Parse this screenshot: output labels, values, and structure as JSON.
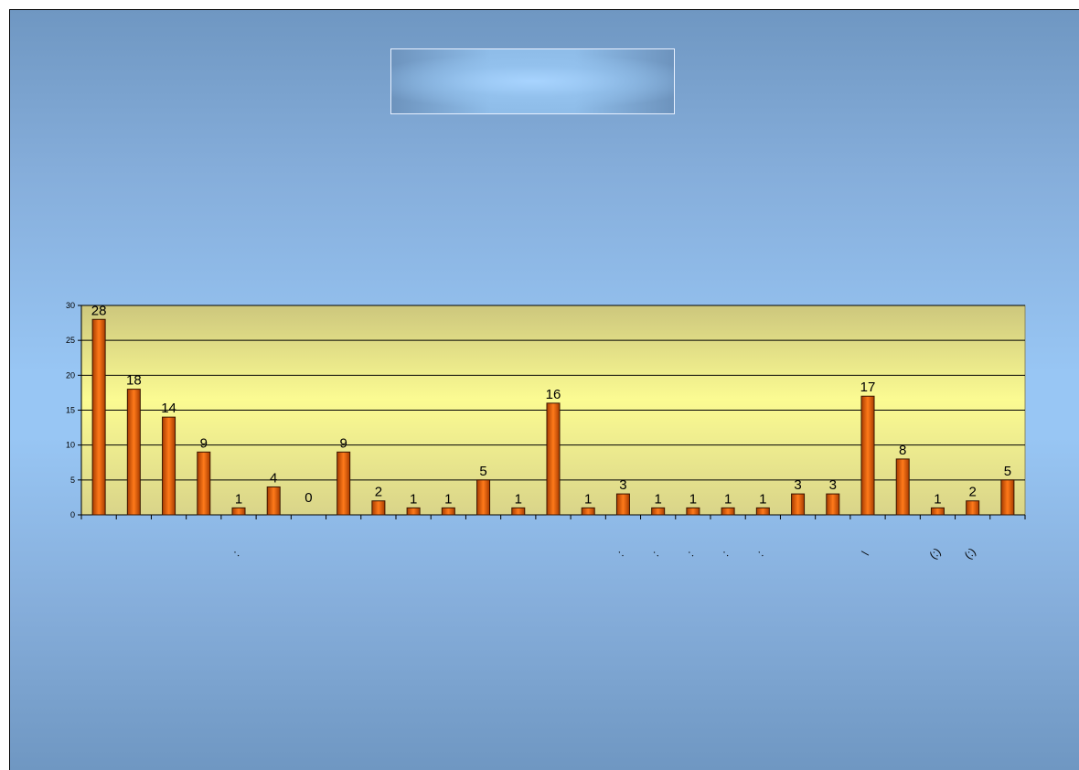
{
  "title": "",
  "colors": {
    "bar_top": "#c85000",
    "bar_mid": "#ff7a1a",
    "plot_top": "#cdc77d",
    "plot_mid": "#fbfb92",
    "gridline": "#000000"
  },
  "chart_data": {
    "type": "bar",
    "title": "",
    "xlabel": "",
    "ylabel": "",
    "ylim": [
      0,
      30
    ],
    "yticks": [
      "0",
      "5",
      "10",
      "15",
      "20",
      "25",
      "30"
    ],
    "grid": true,
    "categories": [
      "",
      "",
      "",
      "",
      ":",
      "",
      "",
      "",
      "",
      "",
      "",
      "",
      "",
      "",
      "",
      ":",
      ":",
      ":",
      ":",
      ":",
      "",
      "",
      "\\",
      "",
      "(:)",
      "(:)",
      ""
    ],
    "values": [
      28,
      18,
      14,
      9,
      1,
      4,
      0,
      9,
      2,
      1,
      1,
      5,
      1,
      16,
      1,
      3,
      1,
      1,
      1,
      1,
      3,
      3,
      17,
      8,
      1,
      2,
      5
    ],
    "data_labels": [
      "28",
      "18",
      "14",
      "9",
      "1",
      "4",
      "0",
      "9",
      "2",
      "1",
      "1",
      "5",
      "1",
      "16",
      "1",
      "3",
      "1",
      "1",
      "1",
      "1",
      "3",
      "3",
      "17",
      "8",
      "1",
      "2",
      "5"
    ]
  }
}
